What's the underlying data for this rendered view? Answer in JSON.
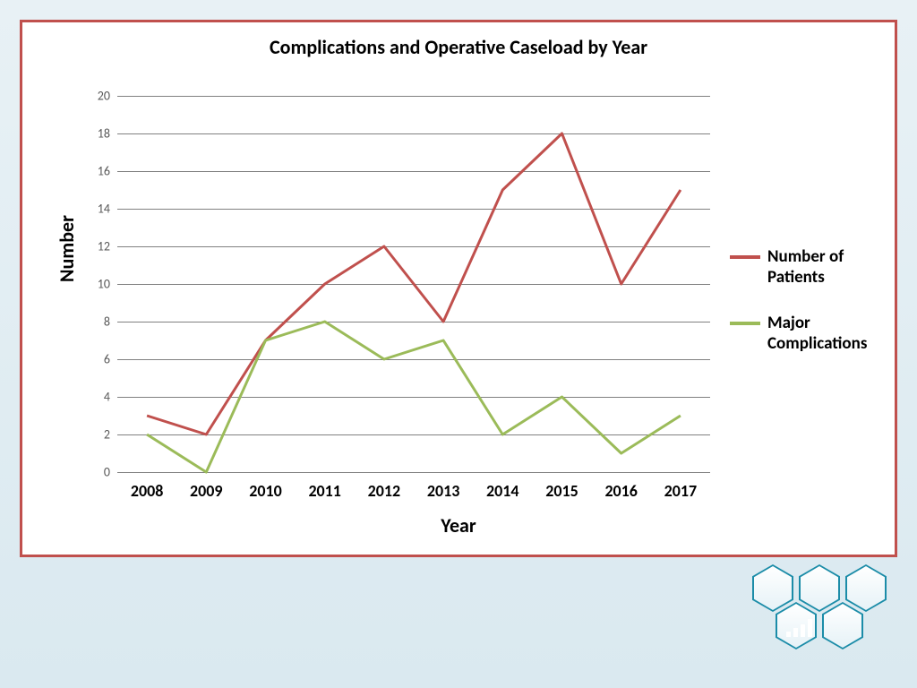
{
  "chart": {
    "type": "line",
    "title": "Complications and Operative Caseload by Year",
    "title_fontsize": 22,
    "xlabel": "Year",
    "ylabel": "Number",
    "label_fontsize": 22,
    "x_categories": [
      "2008",
      "2009",
      "2010",
      "2011",
      "2012",
      "2013",
      "2014",
      "2015",
      "2016",
      "2017"
    ],
    "ylim": [
      0,
      20
    ],
    "ytick_step": 2,
    "yticks": [
      0,
      2,
      4,
      6,
      8,
      10,
      12,
      14,
      16,
      18,
      20
    ],
    "grid_color": "#808080",
    "background_color": "#ffffff",
    "border_color": "#c0504d",
    "line_width": 3,
    "series": [
      {
        "name": "Number of Patients",
        "color": "#c0504d",
        "values": [
          3,
          2,
          7,
          10,
          12,
          8,
          15,
          18,
          10,
          15
        ]
      },
      {
        "name": "Major Complications",
        "color": "#9bbb59",
        "values": [
          2,
          0,
          7,
          8,
          6,
          7,
          2,
          4,
          1,
          3
        ]
      }
    ],
    "xtick_fontsize": 18,
    "ytick_fontsize": 14,
    "legend_fontsize": 19
  },
  "slide": {
    "background_gradient": [
      "#e8f1f5",
      "#dae9f0"
    ]
  },
  "logo": {
    "hex_outline_color": "#1b8ca8",
    "hex_fill_gradient": [
      "#ffffff",
      "#e6f2f7"
    ],
    "solid_hex_color": "#1b8ca8",
    "icon": "bar-chart-icon"
  }
}
